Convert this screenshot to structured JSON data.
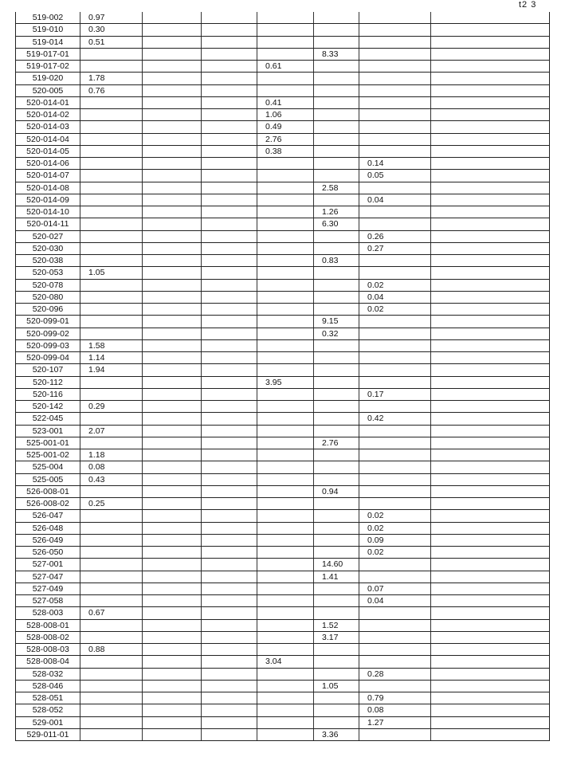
{
  "page_mark": "t2 3",
  "rows": [
    [
      "519-002",
      "0.97",
      "",
      "",
      "",
      "",
      ""
    ],
    [
      "519-010",
      "0.30",
      "",
      "",
      "",
      "",
      ""
    ],
    [
      "519-014",
      "0.51",
      "",
      "",
      "",
      "",
      ""
    ],
    [
      "519-017-01",
      "",
      "",
      "",
      "",
      "8.33",
      ""
    ],
    [
      "519-017-02",
      "",
      "",
      "",
      "0.61",
      "",
      ""
    ],
    [
      "519-020",
      "1.78",
      "",
      "",
      "",
      "",
      ""
    ],
    [
      "520-005",
      "0.76",
      "",
      "",
      "",
      "",
      ""
    ],
    [
      "520-014-01",
      "",
      "",
      "",
      "0.41",
      "",
      ""
    ],
    [
      "520-014-02",
      "",
      "",
      "",
      "1.06",
      "",
      ""
    ],
    [
      "520-014-03",
      "",
      "",
      "",
      "0.49",
      "",
      ""
    ],
    [
      "520-014-04",
      "",
      "",
      "",
      "2.76",
      "",
      ""
    ],
    [
      "520-014-05",
      "",
      "",
      "",
      "0.38",
      "",
      ""
    ],
    [
      "520-014-06",
      "",
      "",
      "",
      "",
      "",
      "0.14"
    ],
    [
      "520-014-07",
      "",
      "",
      "",
      "",
      "",
      "0.05"
    ],
    [
      "520-014-08",
      "",
      "",
      "",
      "",
      "2.58",
      ""
    ],
    [
      "520-014-09",
      "",
      "",
      "",
      "",
      "",
      "0.04"
    ],
    [
      "520-014-10",
      "",
      "",
      "",
      "",
      "1.26",
      ""
    ],
    [
      "520-014-11",
      "",
      "",
      "",
      "",
      "6.30",
      ""
    ],
    [
      "520-027",
      "",
      "",
      "",
      "",
      "",
      "0.26"
    ],
    [
      "520-030",
      "",
      "",
      "",
      "",
      "",
      "0.27"
    ],
    [
      "520-038",
      "",
      "",
      "",
      "",
      "0.83",
      ""
    ],
    [
      "520-053",
      "1.05",
      "",
      "",
      "",
      "",
      ""
    ],
    [
      "520-078",
      "",
      "",
      "",
      "",
      "",
      "0.02"
    ],
    [
      "520-080",
      "",
      "",
      "",
      "",
      "",
      "0.04"
    ],
    [
      "520-096",
      "",
      "",
      "",
      "",
      "",
      "0.02"
    ],
    [
      "520-099-01",
      "",
      "",
      "",
      "",
      "9.15",
      ""
    ],
    [
      "520-099-02",
      "",
      "",
      "",
      "",
      "0.32",
      ""
    ],
    [
      "520-099-03",
      "1.58",
      "",
      "",
      "",
      "",
      ""
    ],
    [
      "520-099-04",
      "1.14",
      "",
      "",
      "",
      "",
      ""
    ],
    [
      "520-107",
      "1.94",
      "",
      "",
      "",
      "",
      ""
    ],
    [
      "520-112",
      "",
      "",
      "",
      "3.95",
      "",
      ""
    ],
    [
      "520-116",
      "",
      "",
      "",
      "",
      "",
      "0.17"
    ],
    [
      "520-142",
      "0.29",
      "",
      "",
      "",
      "",
      ""
    ],
    [
      "522-045",
      "",
      "",
      "",
      "",
      "",
      "0.42"
    ],
    [
      "523-001",
      "2.07",
      "",
      "",
      "",
      "",
      ""
    ],
    [
      "525-001-01",
      "",
      "",
      "",
      "",
      "2.76",
      ""
    ],
    [
      "525-001-02",
      "1.18",
      "",
      "",
      "",
      "",
      ""
    ],
    [
      "525-004",
      "0.08",
      "",
      "",
      "",
      "",
      ""
    ],
    [
      "525-005",
      "0.43",
      "",
      "",
      "",
      "",
      ""
    ],
    [
      "526-008-01",
      "",
      "",
      "",
      "",
      "0.94",
      ""
    ],
    [
      "526-008-02",
      "0.25",
      "",
      "",
      "",
      "",
      ""
    ],
    [
      "526-047",
      "",
      "",
      "",
      "",
      "",
      "0.02"
    ],
    [
      "526-048",
      "",
      "",
      "",
      "",
      "",
      "0.02"
    ],
    [
      "526-049",
      "",
      "",
      "",
      "",
      "",
      "0.09"
    ],
    [
      "526-050",
      "",
      "",
      "",
      "",
      "",
      "0.02"
    ],
    [
      "527-001",
      "",
      "",
      "",
      "",
      "14.60",
      ""
    ],
    [
      "527-047",
      "",
      "",
      "",
      "",
      "1.41",
      ""
    ],
    [
      "527-049",
      "",
      "",
      "",
      "",
      "",
      "0.07"
    ],
    [
      "527-058",
      "",
      "",
      "",
      "",
      "",
      "0.04"
    ],
    [
      "528-003",
      "0.67",
      "",
      "",
      "",
      "",
      ""
    ],
    [
      "528-008-01",
      "",
      "",
      "",
      "",
      "1.52",
      ""
    ],
    [
      "528-008-02",
      "",
      "",
      "",
      "",
      "3.17",
      ""
    ],
    [
      "528-008-03",
      "0.88",
      "",
      "",
      "",
      "",
      ""
    ],
    [
      "528-008-04",
      "",
      "",
      "",
      "3.04",
      "",
      ""
    ],
    [
      "528-032",
      "",
      "",
      "",
      "",
      "",
      "0.28"
    ],
    [
      "528-046",
      "",
      "",
      "",
      "",
      "1.05",
      ""
    ],
    [
      "528-051",
      "",
      "",
      "",
      "",
      "",
      "0.79"
    ],
    [
      "528-052",
      "",
      "",
      "",
      "",
      "",
      "0.08"
    ],
    [
      "529-001",
      "",
      "",
      "",
      "",
      "",
      "1.27"
    ],
    [
      "529-011-01",
      "",
      "",
      "",
      "",
      "3.36",
      ""
    ]
  ]
}
